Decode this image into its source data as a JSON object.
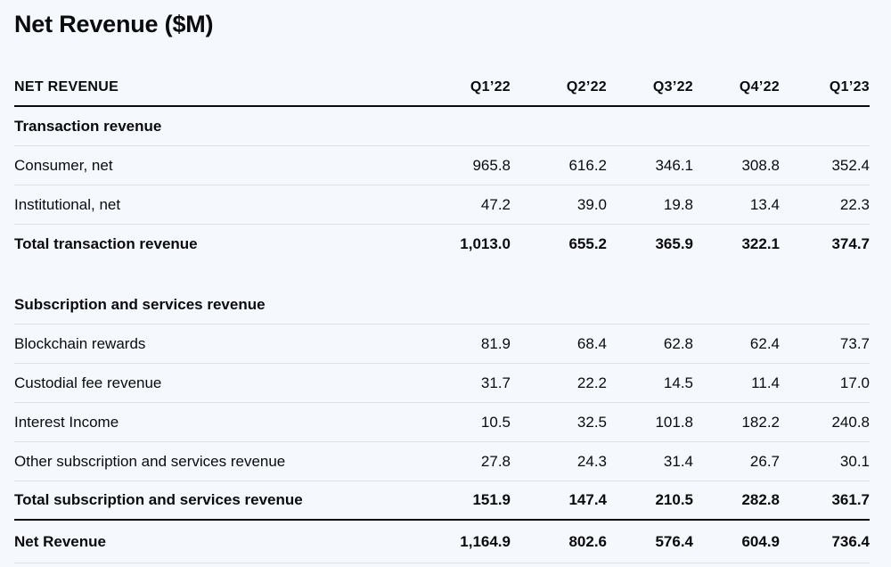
{
  "title": "Net Revenue ($M)",
  "header": {
    "label": "NET REVENUE",
    "quarters": [
      "Q1’22",
      "Q2’22",
      "Q3’22",
      "Q4’22",
      "Q1’23"
    ]
  },
  "transaction": {
    "section_label": "Transaction revenue",
    "rows": [
      {
        "label": "Consumer, net",
        "values": [
          "965.8",
          "616.2",
          "346.1",
          "308.8",
          "352.4"
        ]
      },
      {
        "label": "Institutional, net",
        "values": [
          "47.2",
          "39.0",
          "19.8",
          "13.4",
          "22.3"
        ]
      }
    ],
    "total": {
      "label": "Total transaction revenue",
      "values": [
        "1,013.0",
        "655.2",
        "365.9",
        "322.1",
        "374.7"
      ]
    }
  },
  "subscription": {
    "section_label": "Subscription and services revenue",
    "rows": [
      {
        "label": "Blockchain rewards",
        "values": [
          "81.9",
          "68.4",
          "62.8",
          "62.4",
          "73.7"
        ]
      },
      {
        "label": "Custodial fee revenue",
        "values": [
          "31.7",
          "22.2",
          "14.5",
          "11.4",
          "17.0"
        ]
      },
      {
        "label": "Interest Income",
        "values": [
          "10.5",
          "32.5",
          "101.8",
          "182.2",
          "240.8"
        ]
      },
      {
        "label": "Other subscription and services revenue",
        "values": [
          "27.8",
          "24.3",
          "31.4",
          "26.7",
          "30.1"
        ]
      }
    ],
    "total": {
      "label": "Total subscription and services revenue",
      "values": [
        "151.9",
        "147.4",
        "210.5",
        "282.8",
        "361.7"
      ]
    }
  },
  "net_revenue": {
    "label": "Net Revenue",
    "values": [
      "1,164.9",
      "802.6",
      "576.4",
      "604.9",
      "736.4"
    ]
  }
}
